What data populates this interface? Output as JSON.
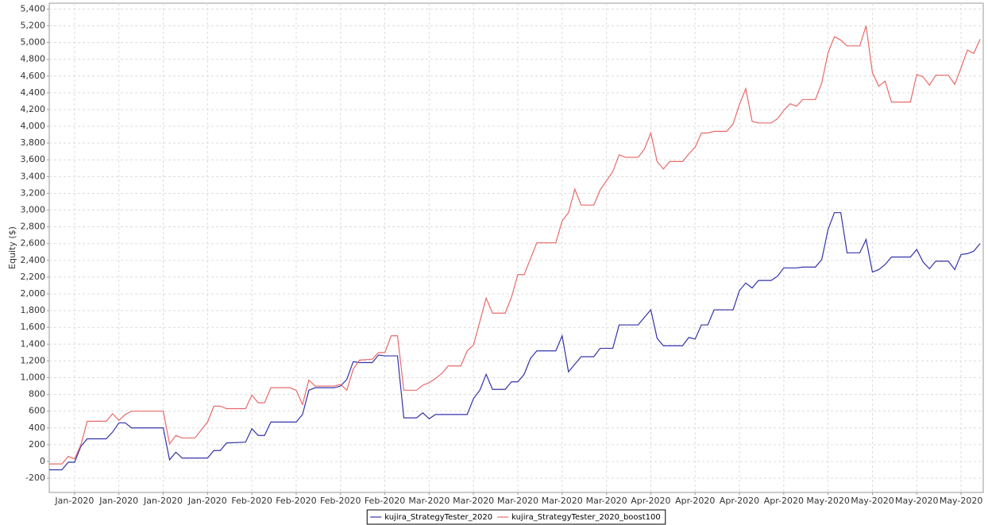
{
  "chart_data": {
    "type": "line",
    "y_label": "Equity ($)",
    "x": [
      0,
      2,
      3,
      4,
      5,
      6,
      9,
      10,
      11,
      12,
      13,
      18,
      19,
      20,
      21,
      23,
      25,
      26,
      27,
      28,
      31,
      32,
      33,
      34,
      35,
      38,
      39,
      40,
      41,
      42,
      45,
      46,
      47,
      48,
      49,
      51,
      52,
      53,
      54,
      55,
      56,
      58,
      59,
      60,
      61,
      62,
      63,
      65,
      66,
      67,
      68,
      69,
      70,
      72,
      73,
      74,
      75,
      76,
      77,
      80,
      81,
      82,
      83,
      84,
      86,
      87,
      89,
      90,
      91,
      93,
      94,
      95,
      96,
      97,
      98,
      100,
      101,
      102,
      103,
      104,
      105,
      107,
      108,
      109,
      110,
      111,
      112,
      114,
      115,
      116,
      117,
      118,
      119,
      121,
      122,
      123,
      124,
      125,
      126,
      128,
      129,
      130,
      131,
      132,
      133,
      136,
      137,
      138,
      139,
      140,
      142,
      143,
      144,
      145,
      146,
      147
    ],
    "series": [
      {
        "name": "kujira_StrategyTester_2020",
        "color": "#3333aa",
        "values": [
          -100,
          -100,
          -10,
          -10,
          180,
          270,
          270,
          350,
          460,
          460,
          400,
          400,
          20,
          110,
          40,
          40,
          40,
          130,
          130,
          220,
          230,
          390,
          310,
          310,
          470,
          470,
          470,
          560,
          850,
          880,
          880,
          900,
          980,
          1190,
          1180,
          1180,
          1270,
          1260,
          1260,
          1260,
          520,
          520,
          580,
          510,
          560,
          560,
          560,
          560,
          560,
          750,
          850,
          1040,
          860,
          860,
          950,
          950,
          1040,
          1230,
          1320,
          1320,
          1500,
          1070,
          1160,
          1250,
          1250,
          1350,
          1350,
          1630,
          1630,
          1630,
          1720,
          1810,
          1470,
          1380,
          1380,
          1380,
          1480,
          1460,
          1630,
          1630,
          1810,
          1810,
          1810,
          2040,
          2130,
          2070,
          2160,
          2160,
          2210,
          2310,
          2310,
          2310,
          2320,
          2320,
          2410,
          2770,
          2970,
          2970,
          2490,
          2490,
          2650,
          2260,
          2290,
          2350,
          2440,
          2440,
          2530,
          2380,
          2300,
          2390,
          2390,
          2290,
          2470,
          2480,
          2510,
          2600
        ]
      },
      {
        "name": "kujira_StrategyTester_2020_boost100",
        "color": "#e86a6a",
        "values": [
          -30,
          -30,
          60,
          30,
          200,
          480,
          480,
          570,
          490,
          560,
          600,
          600,
          210,
          310,
          280,
          280,
          470,
          660,
          660,
          630,
          630,
          790,
          700,
          700,
          880,
          880,
          850,
          680,
          970,
          900,
          900,
          920,
          850,
          1100,
          1210,
          1220,
          1300,
          1300,
          1500,
          1500,
          850,
          850,
          910,
          940,
          990,
          1050,
          1140,
          1140,
          1320,
          1390,
          1670,
          1950,
          1770,
          1770,
          1960,
          2230,
          2230,
          2420,
          2610,
          2610,
          2870,
          2970,
          3250,
          3060,
          3060,
          3240,
          3460,
          3660,
          3630,
          3630,
          3730,
          3920,
          3580,
          3490,
          3580,
          3580,
          3670,
          3750,
          3920,
          3920,
          3940,
          3940,
          4030,
          4260,
          4450,
          4060,
          4040,
          4040,
          4090,
          4190,
          4270,
          4240,
          4320,
          4320,
          4520,
          4880,
          5070,
          5030,
          4960,
          4960,
          5200,
          4640,
          4480,
          4540,
          4290,
          4290,
          4620,
          4590,
          4490,
          4610,
          4610,
          4500,
          4700,
          4910,
          4870,
          5040
        ]
      }
    ],
    "xlim": [
      0,
      147.5
    ],
    "xticks": [
      {
        "value": 4,
        "label": "Jan-2020"
      },
      {
        "value": 11,
        "label": "Jan-2020"
      },
      {
        "value": 18,
        "label": "Jan-2020"
      },
      {
        "value": 25,
        "label": "Jan-2020"
      },
      {
        "value": 32,
        "label": "Feb-2020"
      },
      {
        "value": 39,
        "label": "Feb-2020"
      },
      {
        "value": 46,
        "label": "Feb-2020"
      },
      {
        "value": 53,
        "label": "Feb-2020"
      },
      {
        "value": 60,
        "label": "Mar-2020"
      },
      {
        "value": 67,
        "label": "Mar-2020"
      },
      {
        "value": 74,
        "label": "Mar-2020"
      },
      {
        "value": 81,
        "label": "Mar-2020"
      },
      {
        "value": 88,
        "label": "Mar-2020"
      },
      {
        "value": 95,
        "label": "Apr-2020"
      },
      {
        "value": 102,
        "label": "Apr-2020"
      },
      {
        "value": 109,
        "label": "Apr-2020"
      },
      {
        "value": 116,
        "label": "Apr-2020"
      },
      {
        "value": 123,
        "label": "May-2020"
      },
      {
        "value": 130,
        "label": "May-2020"
      },
      {
        "value": 137,
        "label": "May-2020"
      },
      {
        "value": 144,
        "label": "May-2020"
      }
    ],
    "ylim": [
      -370,
      5470
    ],
    "yticks": [
      -200,
      0,
      200,
      400,
      600,
      800,
      {
        "value": 1000,
        "label": "1,000"
      },
      {
        "value": 1200,
        "label": "1,200"
      },
      {
        "value": 1400,
        "label": "1,400"
      },
      {
        "value": 1600,
        "label": "1,600"
      },
      {
        "value": 1800,
        "label": "1,800"
      },
      {
        "value": 2000,
        "label": "2,000"
      },
      {
        "value": 2200,
        "label": "2,200"
      },
      {
        "value": 2400,
        "label": "2,400"
      },
      {
        "value": 2600,
        "label": "2,600"
      },
      {
        "value": 2800,
        "label": "2,800"
      },
      {
        "value": 3000,
        "label": "3,000"
      },
      {
        "value": 3200,
        "label": "3,200"
      },
      {
        "value": 3400,
        "label": "3,400"
      },
      {
        "value": 3600,
        "label": "3,600"
      },
      {
        "value": 3800,
        "label": "3,800"
      },
      {
        "value": 4000,
        "label": "4,000"
      },
      {
        "value": 4200,
        "label": "4,200"
      },
      {
        "value": 4400,
        "label": "4,400"
      },
      {
        "value": 4600,
        "label": "4,600"
      },
      {
        "value": 4800,
        "label": "4,800"
      },
      {
        "value": 5000,
        "label": "5,000"
      },
      {
        "value": 5200,
        "label": "5,200"
      },
      {
        "value": 5400,
        "label": "5,400"
      }
    ],
    "grid": true,
    "legend": "bottom"
  }
}
